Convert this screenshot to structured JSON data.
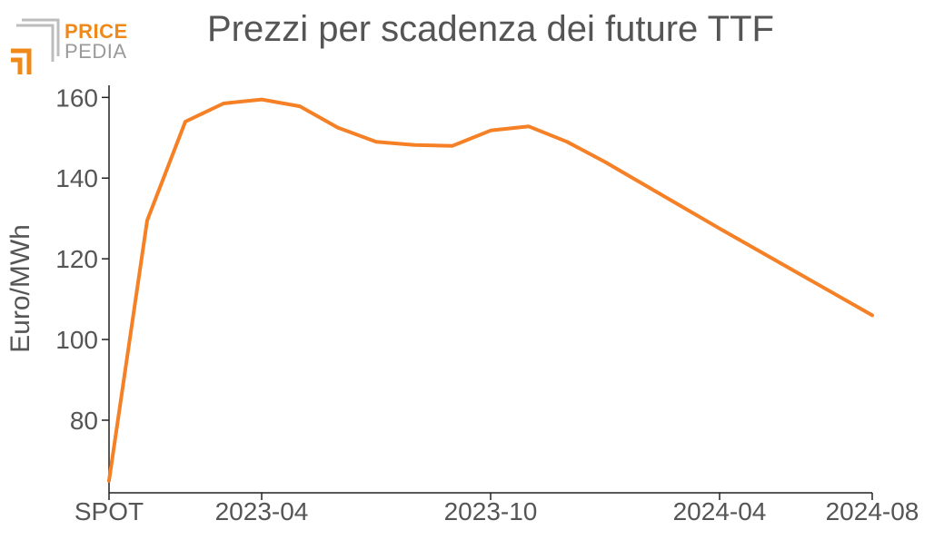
{
  "logo": {
    "line1": "PRICE",
    "line2": "PEDIA"
  },
  "colors": {
    "series": "#f58025",
    "axis": "#222222",
    "text": "#555555",
    "logo_orange": "#ef8a1a",
    "logo_gray": "#9a9a9a"
  },
  "chart_data": {
    "type": "line",
    "title": "Prezzi per scadenza dei future TTF",
    "xlabel": "",
    "ylabel": "Euro/MWh",
    "ylim": [
      62,
      163
    ],
    "yticks": [
      80,
      100,
      120,
      140,
      160
    ],
    "xticks": [
      "SPOT",
      "2023-04",
      "2023-10",
      "2024-04",
      "2024-08"
    ],
    "grid": false,
    "series": [
      {
        "x": [
          "SPOT",
          "2023-01",
          "2023-02",
          "2023-03",
          "2023-04",
          "2023-05",
          "2023-06",
          "2023-07",
          "2023-08",
          "2023-09",
          "2023-10",
          "2023-11",
          "2023-12",
          "2024-01",
          "2024-04",
          "2024-08"
        ],
        "values": [
          65,
          129.5,
          154,
          158.5,
          159.5,
          157.8,
          152.5,
          149,
          148.2,
          148,
          151.8,
          152.8,
          149,
          144,
          127.5,
          106
        ]
      }
    ]
  }
}
